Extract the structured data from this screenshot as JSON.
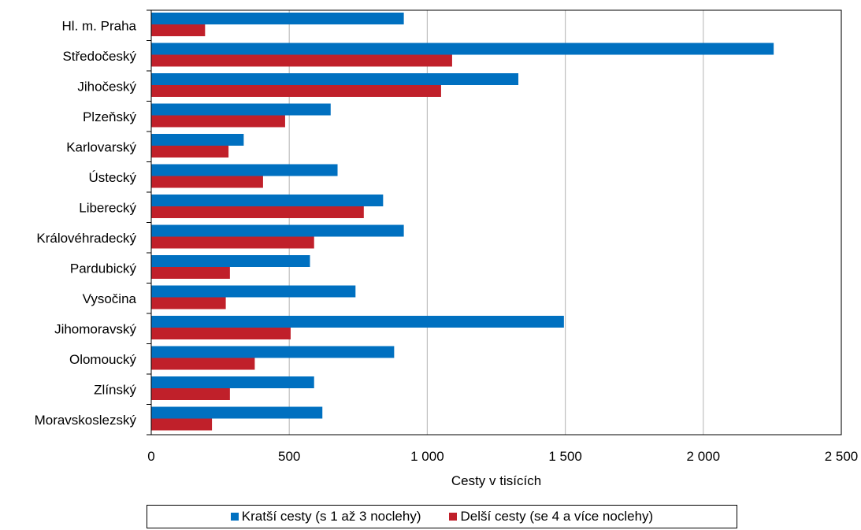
{
  "chart_data": {
    "type": "bar",
    "orientation": "horizontal",
    "categories": [
      "Hl. m. Praha",
      "Středočeský",
      "Jihočeský",
      "Plzeňský",
      "Karlovarský",
      "Ústecký",
      "Liberecký",
      "Královéhradecký",
      "Pardubický",
      "Vysočina",
      "Jihomoravský",
      "Olomoucký",
      "Zlínský",
      "Moravskoslezský"
    ],
    "series": [
      {
        "name": "Kratší cesty (s 1 až 3 noclehy)",
        "color": "#0070C0",
        "values": [
          915,
          2255,
          1330,
          650,
          335,
          675,
          840,
          915,
          575,
          740,
          1495,
          880,
          590,
          620
        ]
      },
      {
        "name": "Delší cesty (se 4 a více noclehy)",
        "color": "#C0202A",
        "values": [
          195,
          1090,
          1050,
          485,
          280,
          405,
          770,
          590,
          285,
          270,
          505,
          375,
          285,
          220
        ]
      }
    ],
    "xlabel": "Cesty v tisících",
    "xlim": [
      0,
      2500
    ],
    "xticks": [
      0,
      500,
      1000,
      1500,
      2000,
      2500
    ],
    "xtick_labels": [
      "0",
      "500",
      "1 000",
      "1 500",
      "2 000",
      "2 500"
    ],
    "grid": "vertical",
    "legend_position": "bottom"
  }
}
